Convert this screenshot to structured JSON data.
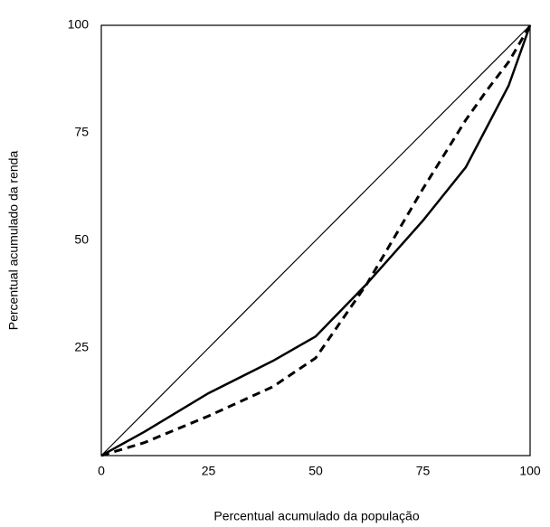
{
  "chart_data": {
    "type": "line",
    "x_label": "Percentual acumulado da população",
    "y_label": "Percentual acumulado da renda",
    "x": [
      0,
      10,
      25,
      40,
      50,
      62,
      75,
      85,
      90,
      95,
      100
    ],
    "series": [
      {
        "color": "#000000",
        "width": 1.2,
        "dash": "none",
        "values": [
          0,
          10,
          25,
          40,
          50,
          62,
          75,
          85,
          90,
          95,
          100
        ]
      },
      {
        "color": "#000000",
        "width": 2.5,
        "dash": "none",
        "values": [
          0,
          5.5,
          14.5,
          22,
          27.7,
          40,
          54.6,
          67,
          76.5,
          86,
          100
        ]
      },
      {
        "color": "#000000",
        "width": 3,
        "dash": "9,6",
        "values": [
          0,
          3,
          9.2,
          16,
          22.7,
          40,
          62,
          78,
          85,
          91.5,
          100
        ]
      }
    ],
    "xlim": [
      0,
      100
    ],
    "ylim": [
      0,
      100
    ],
    "xticks": [
      0,
      25,
      50,
      75,
      100
    ],
    "yticks": [
      25,
      50,
      75,
      100
    ],
    "grid": false
  }
}
